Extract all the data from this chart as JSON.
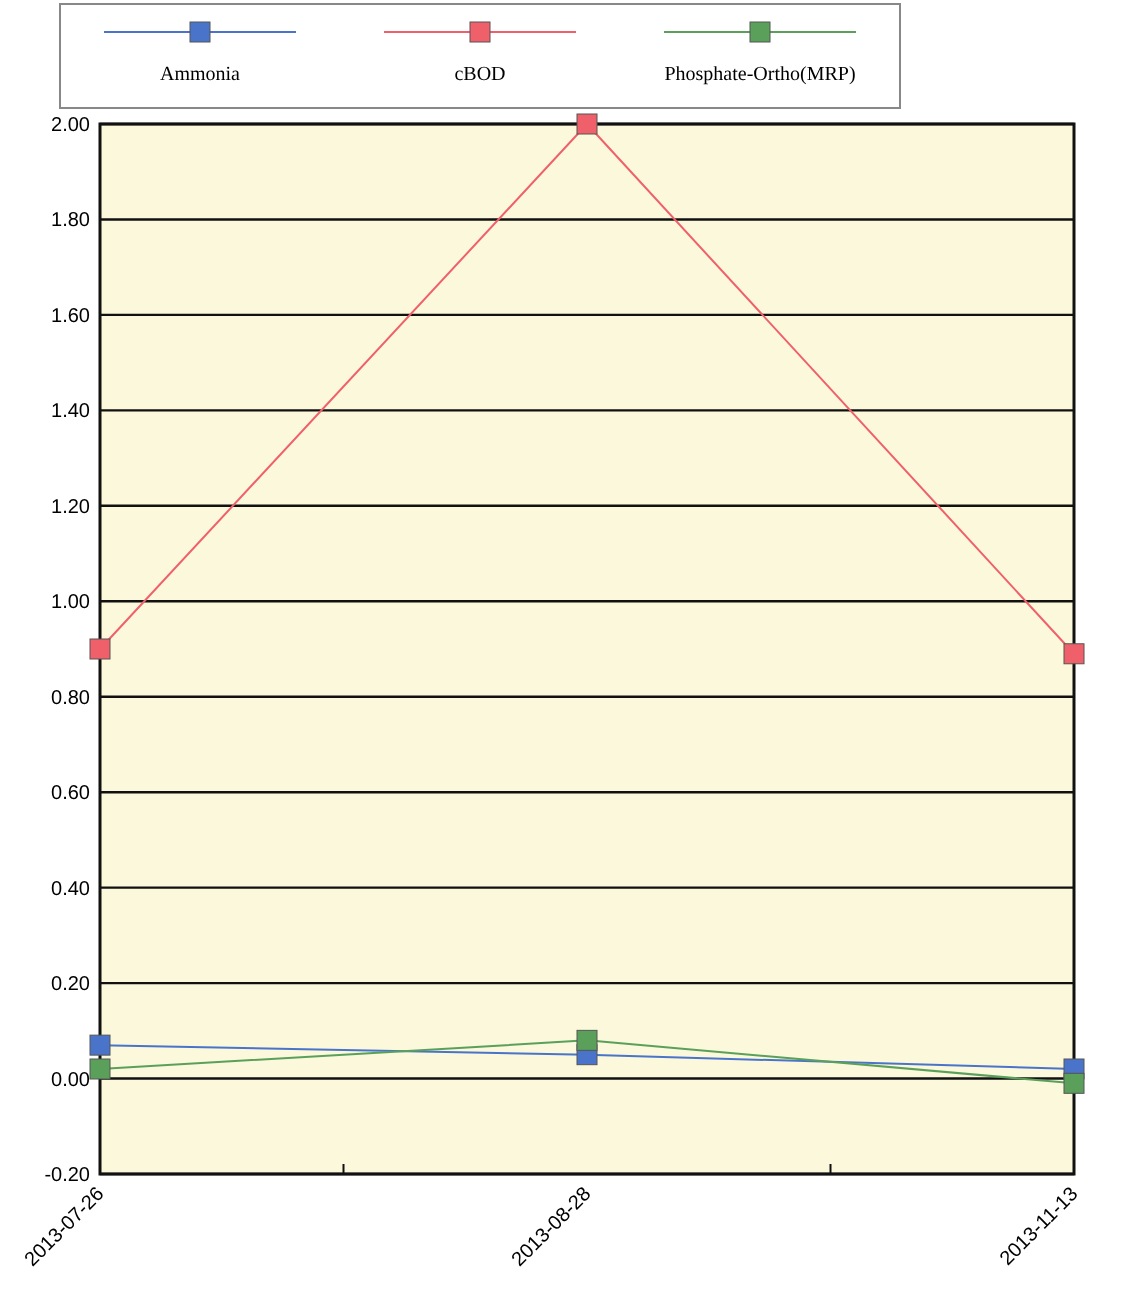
{
  "chart_data": {
    "type": "line",
    "categories": [
      "2013-07-26",
      "2013-08-28",
      "2013-11-13"
    ],
    "series": [
      {
        "name": "Ammonia",
        "color": "#4a74c9",
        "values": [
          0.07,
          0.05,
          0.02
        ]
      },
      {
        "name": "cBOD",
        "color": "#f0606a",
        "values": [
          0.9,
          2.0,
          0.89
        ]
      },
      {
        "name": "Phosphate-Ortho(MRP)",
        "color": "#5aa05a",
        "values": [
          0.02,
          0.08,
          -0.01
        ]
      }
    ],
    "ylim": [
      -0.2,
      2.0
    ],
    "yticks": [
      {
        "value": -0.2,
        "label": "-0.20"
      },
      {
        "value": 0,
        "label": "0.00"
      },
      {
        "value": 0.2,
        "label": "0.20"
      },
      {
        "value": 0.4,
        "label": "0.40"
      },
      {
        "value": 0.6,
        "label": "0.60"
      },
      {
        "value": 0.8,
        "label": "0.80"
      },
      {
        "value": 1.0,
        "label": "1.00"
      },
      {
        "value": 1.2,
        "label": "1.20"
      },
      {
        "value": 1.4,
        "label": "1.40"
      },
      {
        "value": 1.6,
        "label": "1.60"
      },
      {
        "value": 1.8,
        "label": "1.80"
      },
      {
        "value": 2.0,
        "label": "2.00"
      }
    ],
    "grid": "y",
    "legend": "top",
    "marker": "square",
    "line_style": "solid"
  }
}
